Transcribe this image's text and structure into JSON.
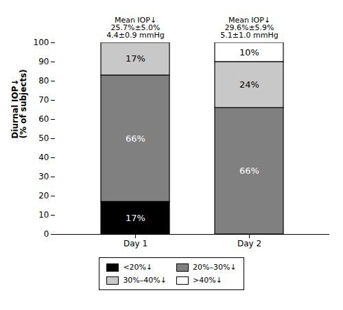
{
  "chart_data": {
    "type": "bar",
    "stacked": true,
    "categories": [
      "Day 1",
      "Day 2"
    ],
    "series": [
      {
        "name": "<20%↓",
        "color": "#000000",
        "values": [
          17,
          0
        ],
        "value_labels": [
          "17%",
          null
        ]
      },
      {
        "name": "20%–30%↓",
        "color": "#808080",
        "values": [
          66,
          66
        ],
        "value_labels": [
          "66%",
          "66%"
        ]
      },
      {
        "name": "30%–40%↓",
        "color": "#c8c8c8",
        "values": [
          17,
          24
        ],
        "value_labels": [
          "17%",
          "24%"
        ]
      },
      {
        "name": ">40%↓",
        "color": "#ffffff",
        "values": [
          0,
          10
        ],
        "value_labels": [
          null,
          "10%"
        ]
      }
    ],
    "ylabel": "Diurnal IOP↓\n(% of subjects)",
    "ylim": [
      0,
      100
    ],
    "yticks": [
      0,
      10,
      20,
      30,
      40,
      50,
      60,
      70,
      80,
      90,
      100
    ],
    "annotations": [
      "Mean IOP↓\n25.7%±5.0%\n4.4±0.9 mmHg",
      "Mean IOP↓\n29.6%±5.9%\n5.1±1.0 mmHg"
    ],
    "data_labels": true,
    "legend": "bottom"
  }
}
